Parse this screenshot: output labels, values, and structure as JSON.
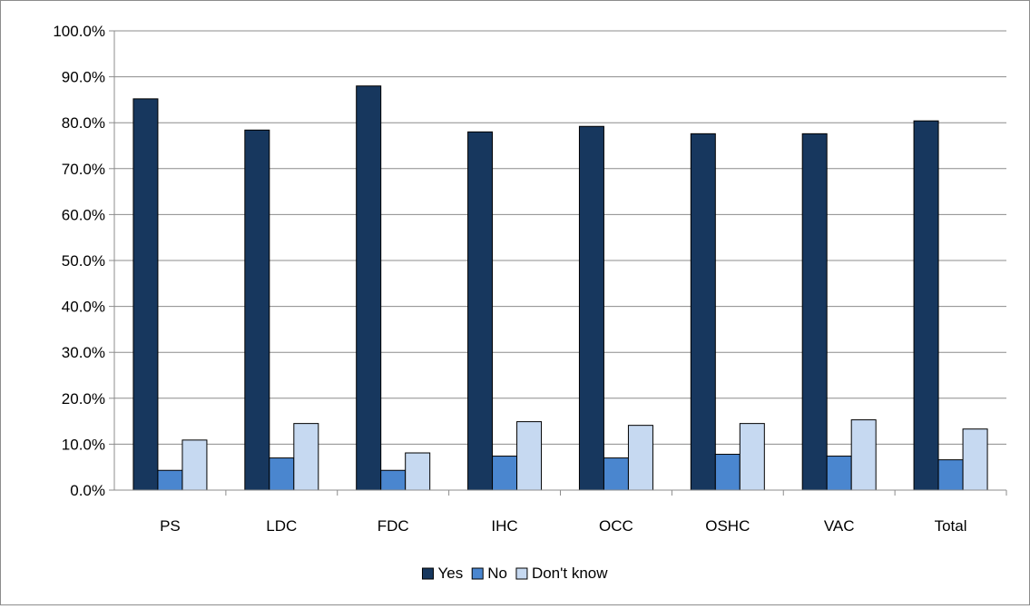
{
  "chart_data": {
    "type": "bar",
    "categories": [
      "PS",
      "LDC",
      "FDC",
      "IHC",
      "OCC",
      "OSHC",
      "VAC",
      "Total"
    ],
    "series": [
      {
        "name": "Yes",
        "color": "#17375e",
        "values": [
          85.2,
          78.4,
          88.0,
          78.0,
          79.2,
          77.6,
          77.6,
          80.4
        ]
      },
      {
        "name": "No",
        "color": "#4a86cf",
        "values": [
          4.3,
          7.0,
          4.3,
          7.4,
          7.0,
          7.8,
          7.4,
          6.6
        ]
      },
      {
        "name": "Don't know",
        "color": "#c6d9f1",
        "values": [
          10.9,
          14.5,
          8.1,
          14.9,
          14.1,
          14.5,
          15.3,
          13.3
        ]
      }
    ],
    "ylim": [
      0,
      100
    ],
    "ytick_step": 10,
    "ytick_format": "percent_1dp",
    "title": "",
    "xlabel": "",
    "ylabel": "",
    "grid": true,
    "legend": "bottom"
  }
}
